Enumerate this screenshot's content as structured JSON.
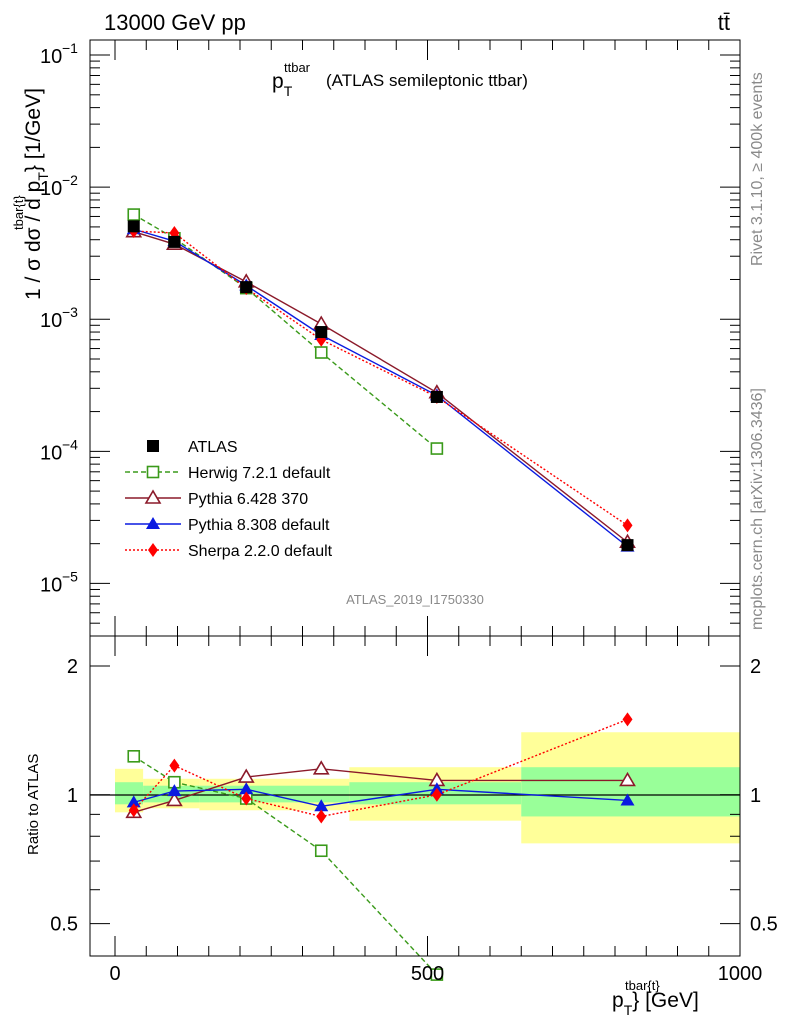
{
  "header": {
    "left": "13000 GeV pp",
    "right": "tt̄"
  },
  "side_text": {
    "rivet": "Rivet 3.1.10, ≥ 400k events",
    "site": "mcplots.cern.ch [arXiv:1306.3436]"
  },
  "chart_data": [
    {
      "type": "line",
      "title": {
        "main": "p",
        "sub": "T",
        "sup": "ttbar",
        "rest": "(ATLAS semileptonic ttbar)"
      },
      "ylabel": {
        "pre": "1 / σ dσ / d p",
        "sub": "T",
        "sup": "tbar{t}",
        "post": "} [1/GeV]"
      },
      "y_scale": "log",
      "ylim": [
        4e-06,
        0.13
      ],
      "xlim": [
        -40,
        1000
      ],
      "y_ticks": [
        {
          "value": 0.1,
          "base": "10",
          "exp": "−1"
        },
        {
          "value": 0.01,
          "base": "10",
          "exp": "−2"
        },
        {
          "value": 0.001,
          "base": "10",
          "exp": "−3"
        },
        {
          "value": 0.0001,
          "base": "10",
          "exp": "−4"
        },
        {
          "value": 1e-05,
          "base": "10",
          "exp": "−5"
        }
      ],
      "watermark": "ATLAS_2019_I1750330",
      "legend_position": "bottom-left",
      "series": [
        {
          "name": "ATLAS",
          "color": "#000000",
          "marker": "square-filled",
          "line": "none",
          "x": [
            30,
            95,
            210,
            330,
            515,
            820
          ],
          "y": [
            0.00505,
            0.00385,
            0.00175,
            0.0008,
            0.000258,
            1.95e-05
          ]
        },
        {
          "name": "Herwig 7.2.1 default",
          "color": "#3a9a1a",
          "marker": "square-open",
          "line": "dashed",
          "x": [
            30,
            95,
            210,
            330,
            515
          ],
          "y": [
            0.0062,
            0.0041,
            0.00172,
            0.00056,
            0.000105
          ]
        },
        {
          "name": "Pythia 6.428 370",
          "color": "#8b1a2a",
          "marker": "triangle-open",
          "line": "solid",
          "x": [
            30,
            95,
            210,
            330,
            515,
            820
          ],
          "y": [
            0.0046,
            0.0037,
            0.00192,
            0.00092,
            0.000278,
            2.05e-05
          ]
        },
        {
          "name": "Pythia 8.308 default",
          "color": "#0a1ae0",
          "marker": "triangle-filled",
          "line": "solid",
          "x": [
            30,
            95,
            210,
            330,
            515,
            820
          ],
          "y": [
            0.0048,
            0.0039,
            0.0018,
            0.00076,
            0.000265,
            1.9e-05
          ]
        },
        {
          "name": "Sherpa 2.2.0 default",
          "color": "#ff0000",
          "marker": "diamond-filled",
          "line": "dotted",
          "x": [
            30,
            95,
            210,
            330,
            515,
            820
          ],
          "y": [
            0.00465,
            0.0045,
            0.00172,
            0.0007,
            0.000258,
            2.75e-05
          ]
        }
      ]
    },
    {
      "type": "line",
      "ylabel": "Ratio to ATLAS",
      "y_scale": "log",
      "ylim": [
        0.42,
        2.35
      ],
      "xlim": [
        -40,
        1000
      ],
      "y_ticks": [
        0.5,
        1,
        2
      ],
      "x_ticks": [
        0,
        500,
        1000
      ],
      "xlabel": {
        "pre": "p",
        "sub": "T",
        "sup": "tbar{t}",
        "post": "} [GeV]"
      },
      "bands": [
        {
          "x0": 0,
          "x1": 45,
          "inner": [
            0.95,
            1.07
          ],
          "outer": [
            0.91,
            1.15
          ]
        },
        {
          "x0": 45,
          "x1": 135,
          "inner": [
            0.96,
            1.05
          ],
          "outer": [
            0.93,
            1.09
          ]
        },
        {
          "x0": 135,
          "x1": 375,
          "inner": [
            0.96,
            1.05
          ],
          "outer": [
            0.92,
            1.09
          ]
        },
        {
          "x0": 375,
          "x1": 650,
          "inner": [
            0.95,
            1.07
          ],
          "outer": [
            0.87,
            1.16
          ]
        },
        {
          "x0": 650,
          "x1": 1000,
          "inner": [
            0.89,
            1.16
          ],
          "outer": [
            0.77,
            1.4
          ]
        }
      ],
      "series": [
        {
          "name": "Herwig 7.2.1 default",
          "color": "#3a9a1a",
          "marker": "square-open",
          "line": "dashed",
          "x": [
            30,
            95,
            210,
            330,
            515
          ],
          "y": [
            1.23,
            1.07,
            0.98,
            0.74,
            0.38
          ]
        },
        {
          "name": "Pythia 6.428 370",
          "color": "#8b1a2a",
          "marker": "triangle-open",
          "line": "solid",
          "x": [
            30,
            95,
            210,
            330,
            515,
            820
          ],
          "y": [
            0.91,
            0.97,
            1.1,
            1.15,
            1.08,
            1.08
          ]
        },
        {
          "name": "Pythia 8.308 default",
          "color": "#0a1ae0",
          "marker": "triangle-filled",
          "line": "solid",
          "x": [
            30,
            95,
            210,
            330,
            515,
            820
          ],
          "y": [
            0.96,
            1.02,
            1.03,
            0.94,
            1.03,
            0.97
          ]
        },
        {
          "name": "Sherpa 2.2.0 default",
          "color": "#ff0000",
          "marker": "diamond-filled",
          "line": "dotted",
          "x": [
            30,
            95,
            210,
            330,
            515,
            820
          ],
          "y": [
            0.92,
            1.17,
            0.98,
            0.89,
            1.0,
            1.5
          ]
        }
      ]
    }
  ]
}
